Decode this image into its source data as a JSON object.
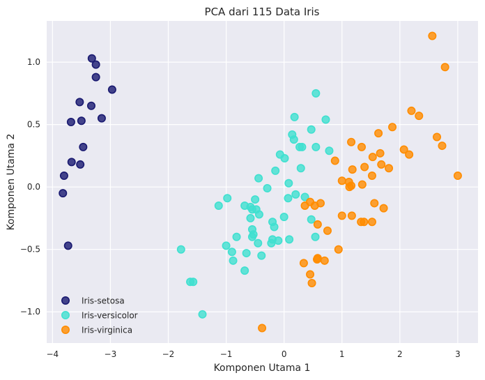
{
  "chart_data": {
    "type": "scatter",
    "title": "PCA dari 115 Data Iris",
    "xlabel": "Komponen Utama 1",
    "ylabel": "Komponen Utama 2",
    "xlim": [
      -4.1,
      3.35
    ],
    "ylim": [
      -1.25,
      1.33
    ],
    "xticks": [
      -4,
      -3,
      -2,
      -1,
      0,
      1,
      2,
      3
    ],
    "yticks": [
      -1.0,
      -0.5,
      0.0,
      0.5,
      1.0
    ],
    "xtick_labels": [
      "−4",
      "−3",
      "−2",
      "−1",
      "0",
      "1",
      "2",
      "3"
    ],
    "ytick_labels": [
      "−1.0",
      "−0.5",
      "0.0",
      "0.5",
      "1.0"
    ],
    "grid": true,
    "legend_position": "lower-left",
    "series": [
      {
        "name": "Iris-setosa",
        "color": "#191970",
        "x": [
          -3.32,
          -3.25,
          -3.25,
          -2.97,
          -3.53,
          -3.33,
          -3.68,
          -3.5,
          -3.15,
          -3.47,
          -3.67,
          -3.52,
          -3.8,
          -3.82,
          -3.73
        ],
        "y": [
          1.03,
          0.98,
          0.88,
          0.78,
          0.68,
          0.65,
          0.52,
          0.53,
          0.55,
          0.32,
          0.2,
          0.18,
          0.09,
          -0.05,
          -0.47
        ]
      },
      {
        "name": "Iris-versicolor",
        "color": "#40E0D0",
        "x": [
          0.55,
          0.18,
          0.72,
          0.47,
          0.14,
          0.17,
          0.27,
          0.31,
          0.55,
          0.78,
          -0.07,
          0.01,
          0.29,
          -0.15,
          -0.44,
          0.08,
          -0.29,
          0.2,
          0.07,
          0.36,
          -0.98,
          -0.5,
          -1.13,
          -0.68,
          -0.58,
          -0.55,
          -0.48,
          -0.58,
          -0.43,
          -0.2,
          -0.55,
          -0.53,
          -0.17,
          0.0,
          0.47,
          -0.2,
          -0.1,
          -0.55,
          -0.45,
          -0.82,
          0.54,
          -0.22,
          0.09,
          -1.78,
          -1.0,
          -0.9,
          -0.65,
          -0.88,
          -0.68,
          -0.39,
          -1.62,
          -1.57,
          -1.41
        ],
        "y": [
          0.75,
          0.56,
          0.54,
          0.46,
          0.42,
          0.38,
          0.32,
          0.32,
          0.32,
          0.29,
          0.26,
          0.23,
          0.15,
          0.13,
          0.07,
          0.03,
          -0.01,
          -0.06,
          -0.09,
          -0.08,
          -0.09,
          -0.1,
          -0.15,
          -0.15,
          -0.16,
          -0.18,
          -0.18,
          -0.25,
          -0.22,
          -0.28,
          -0.34,
          -0.38,
          -0.32,
          -0.24,
          -0.26,
          -0.42,
          -0.43,
          -0.4,
          -0.45,
          -0.4,
          -0.4,
          -0.45,
          -0.42,
          -0.5,
          -0.47,
          -0.52,
          -0.53,
          -0.59,
          -0.67,
          -0.55,
          -0.76,
          -0.76,
          -1.02
        ],
        "note": ""
      },
      {
        "name": "Iris-virginica",
        "color": "#FF8C00",
        "x": [
          2.56,
          2.78,
          2.2,
          2.33,
          1.87,
          1.63,
          2.64,
          2.73,
          1.16,
          1.34,
          2.07,
          2.16,
          1.66,
          0.88,
          1.53,
          1.39,
          1.81,
          1.68,
          1.18,
          1.0,
          1.12,
          1.52,
          1.13,
          1.35,
          1.16,
          1.72,
          1.56,
          3.0,
          0.45,
          0.53,
          0.63,
          0.36,
          0.58,
          1.0,
          1.17,
          1.33,
          1.38,
          1.52,
          0.58,
          0.7,
          0.94,
          0.57,
          0.34,
          0.75,
          0.45,
          0.48,
          -0.38
        ],
        "y": [
          1.21,
          0.96,
          0.61,
          0.57,
          0.48,
          0.43,
          0.4,
          0.33,
          0.36,
          0.32,
          0.3,
          0.26,
          0.27,
          0.21,
          0.24,
          0.16,
          0.15,
          0.18,
          0.14,
          0.05,
          0.04,
          0.09,
          0.0,
          0.02,
          0.01,
          -0.17,
          -0.13,
          0.09,
          -0.12,
          -0.15,
          -0.13,
          -0.15,
          -0.3,
          -0.23,
          -0.23,
          -0.28,
          -0.28,
          -0.28,
          -0.57,
          -0.59,
          -0.5,
          -0.58,
          -0.61,
          -0.35,
          -0.7,
          -0.77,
          -1.13
        ]
      }
    ]
  }
}
